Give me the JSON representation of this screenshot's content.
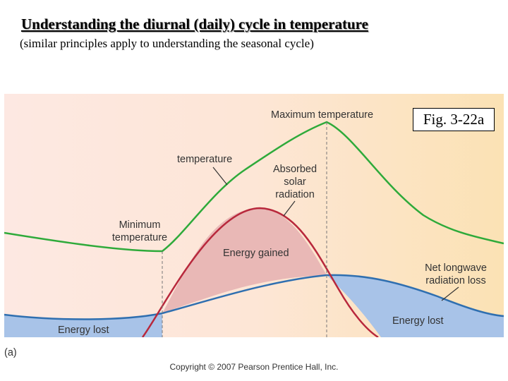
{
  "title": "Understanding the diurnal (daily) cycle in temperature",
  "subtitle": "(similar principles apply to understanding the seasonal cycle)",
  "figure_ref": "Fig. 3-22a",
  "panel_label": "(a)",
  "copyright": "Copyright © 2007 Pearson Prentice Hall, Inc.",
  "labels": {
    "maximum_temperature": "Maximum temperature",
    "temperature": "temperature",
    "absorbed_solar_radiation": [
      "Absorbed",
      "solar",
      "radiation"
    ],
    "minimum_temperature": [
      "Minimum",
      "temperature"
    ],
    "energy_gained": "Energy gained",
    "net_longwave": [
      "Net longwave",
      "radiation loss"
    ],
    "energy_lost_left": "Energy lost",
    "energy_lost_right": "Energy lost"
  },
  "colors": {
    "temperature_curve": "#2eaa3a",
    "solar_curve": "#b8283c",
    "longwave_curve": "#2f6fb0",
    "energy_gained_fill": "#e8b8b4",
    "energy_lost_fill": "#a8c4e8",
    "background_left": "#fde7e0",
    "background_right": "#fbe3b6"
  }
}
